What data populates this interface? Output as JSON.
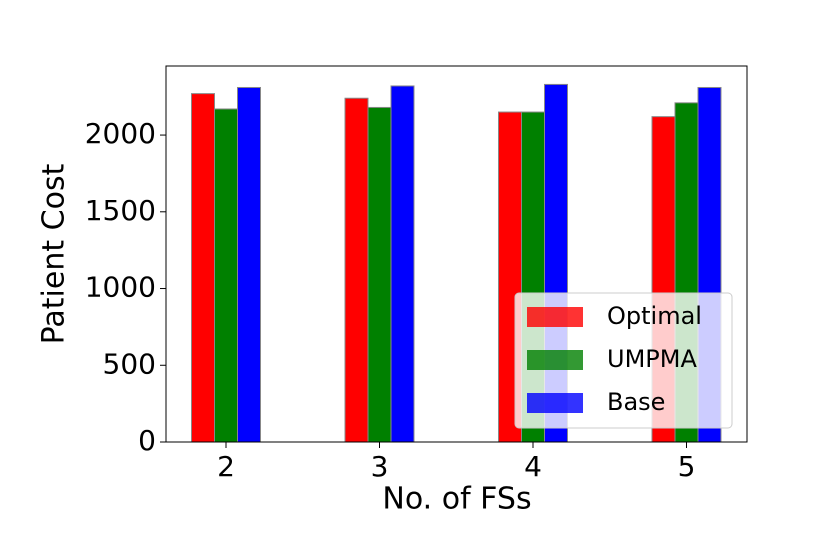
{
  "chart_data": {
    "type": "bar",
    "x_label": "No. of FSs",
    "y_label": "Patient Cost",
    "categories": [
      "2",
      "3",
      "4",
      "5"
    ],
    "series": [
      {
        "name": "Optimal",
        "color": "#ff0000",
        "values": [
          2270,
          2240,
          2150,
          2120
        ]
      },
      {
        "name": "UMPMA",
        "color": "#008000",
        "values": [
          2170,
          2180,
          2150,
          2210
        ]
      },
      {
        "name": "Base",
        "color": "#0000ff",
        "values": [
          2310,
          2320,
          2330,
          2310
        ]
      }
    ],
    "ylim": [
      0,
      2450
    ],
    "yticks": [
      0,
      500,
      1000,
      1500,
      2000
    ],
    "legend": "lower right",
    "grid": false
  }
}
